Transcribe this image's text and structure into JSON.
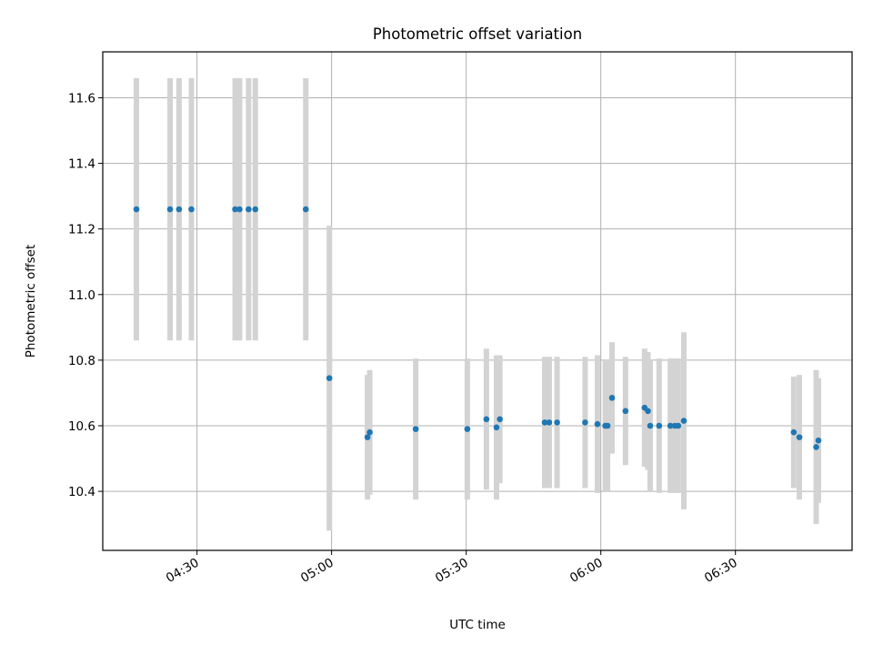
{
  "chart_data": {
    "type": "scatter",
    "title": "Photometric offset variation",
    "xlabel": "UTC time",
    "ylabel": "Photometric offset",
    "xlim": [
      "04:09",
      "06:56"
    ],
    "ylim": [
      10.22,
      11.74
    ],
    "x_ticks": [
      "04:30",
      "05:00",
      "05:30",
      "06:00",
      "06:30"
    ],
    "y_ticks": [
      "10.4",
      "10.6",
      "10.8",
      "11.0",
      "11.2",
      "11.4",
      "11.6"
    ],
    "grid": true,
    "colors": {
      "points": "#1f77b4",
      "errorbars": "#d3d3d3",
      "grid": "#b0b0b0"
    },
    "series": [
      {
        "points": [
          {
            "x": "04:16:30",
            "y": 11.26,
            "err": 0.4
          },
          {
            "x": "04:24:00",
            "y": 11.26,
            "err": 0.4
          },
          {
            "x": "04:26:00",
            "y": 11.26,
            "err": 0.4
          },
          {
            "x": "04:28:45",
            "y": 11.26,
            "err": 0.4
          },
          {
            "x": "04:38:30",
            "y": 11.26,
            "err": 0.4
          },
          {
            "x": "04:39:30",
            "y": 11.26,
            "err": 0.4
          },
          {
            "x": "04:41:30",
            "y": 11.26,
            "err": 0.4
          },
          {
            "x": "04:43:00",
            "y": 11.26,
            "err": 0.4
          },
          {
            "x": "04:54:15",
            "y": 11.26,
            "err": 0.4
          },
          {
            "x": "04:59:30",
            "y": 10.745,
            "err": 0.465
          },
          {
            "x": "05:08:00",
            "y": 10.565,
            "err": 0.19
          },
          {
            "x": "05:08:30",
            "y": 10.58,
            "err": 0.19
          },
          {
            "x": "05:18:45",
            "y": 10.59,
            "err": 0.215
          },
          {
            "x": "05:30:15",
            "y": 10.59,
            "err": 0.215
          },
          {
            "x": "05:34:30",
            "y": 10.62,
            "err": 0.215
          },
          {
            "x": "05:36:45",
            "y": 10.595,
            "err": 0.22
          },
          {
            "x": "05:37:30",
            "y": 10.62,
            "err": 0.195
          },
          {
            "x": "05:47:30",
            "y": 10.61,
            "err": 0.2
          },
          {
            "x": "05:48:30",
            "y": 10.61,
            "err": 0.2
          },
          {
            "x": "05:50:15",
            "y": 10.61,
            "err": 0.2
          },
          {
            "x": "05:56:30",
            "y": 10.61,
            "err": 0.2
          },
          {
            "x": "05:59:15",
            "y": 10.605,
            "err": 0.21
          },
          {
            "x": "06:01:00",
            "y": 10.6,
            "err": 0.2
          },
          {
            "x": "06:01:30",
            "y": 10.6,
            "err": 0.2
          },
          {
            "x": "06:02:30",
            "y": 10.685,
            "err": 0.17
          },
          {
            "x": "06:05:30",
            "y": 10.645,
            "err": 0.165
          },
          {
            "x": "06:09:45",
            "y": 10.655,
            "err": 0.18
          },
          {
            "x": "06:10:30",
            "y": 10.645,
            "err": 0.18
          },
          {
            "x": "06:11:00",
            "y": 10.6,
            "err": 0.2
          },
          {
            "x": "06:13:00",
            "y": 10.6,
            "err": 0.205
          },
          {
            "x": "06:15:30",
            "y": 10.6,
            "err": 0.205
          },
          {
            "x": "06:16:30",
            "y": 10.6,
            "err": 0.205
          },
          {
            "x": "06:17:15",
            "y": 10.6,
            "err": 0.205
          },
          {
            "x": "06:18:30",
            "y": 10.615,
            "err": 0.27
          },
          {
            "x": "06:43:00",
            "y": 10.58,
            "err": 0.17
          },
          {
            "x": "06:44:15",
            "y": 10.565,
            "err": 0.19
          },
          {
            "x": "06:48:00",
            "y": 10.535,
            "err": 0.235
          },
          {
            "x": "06:48:30",
            "y": 10.555,
            "err": 0.19
          }
        ]
      }
    ]
  }
}
